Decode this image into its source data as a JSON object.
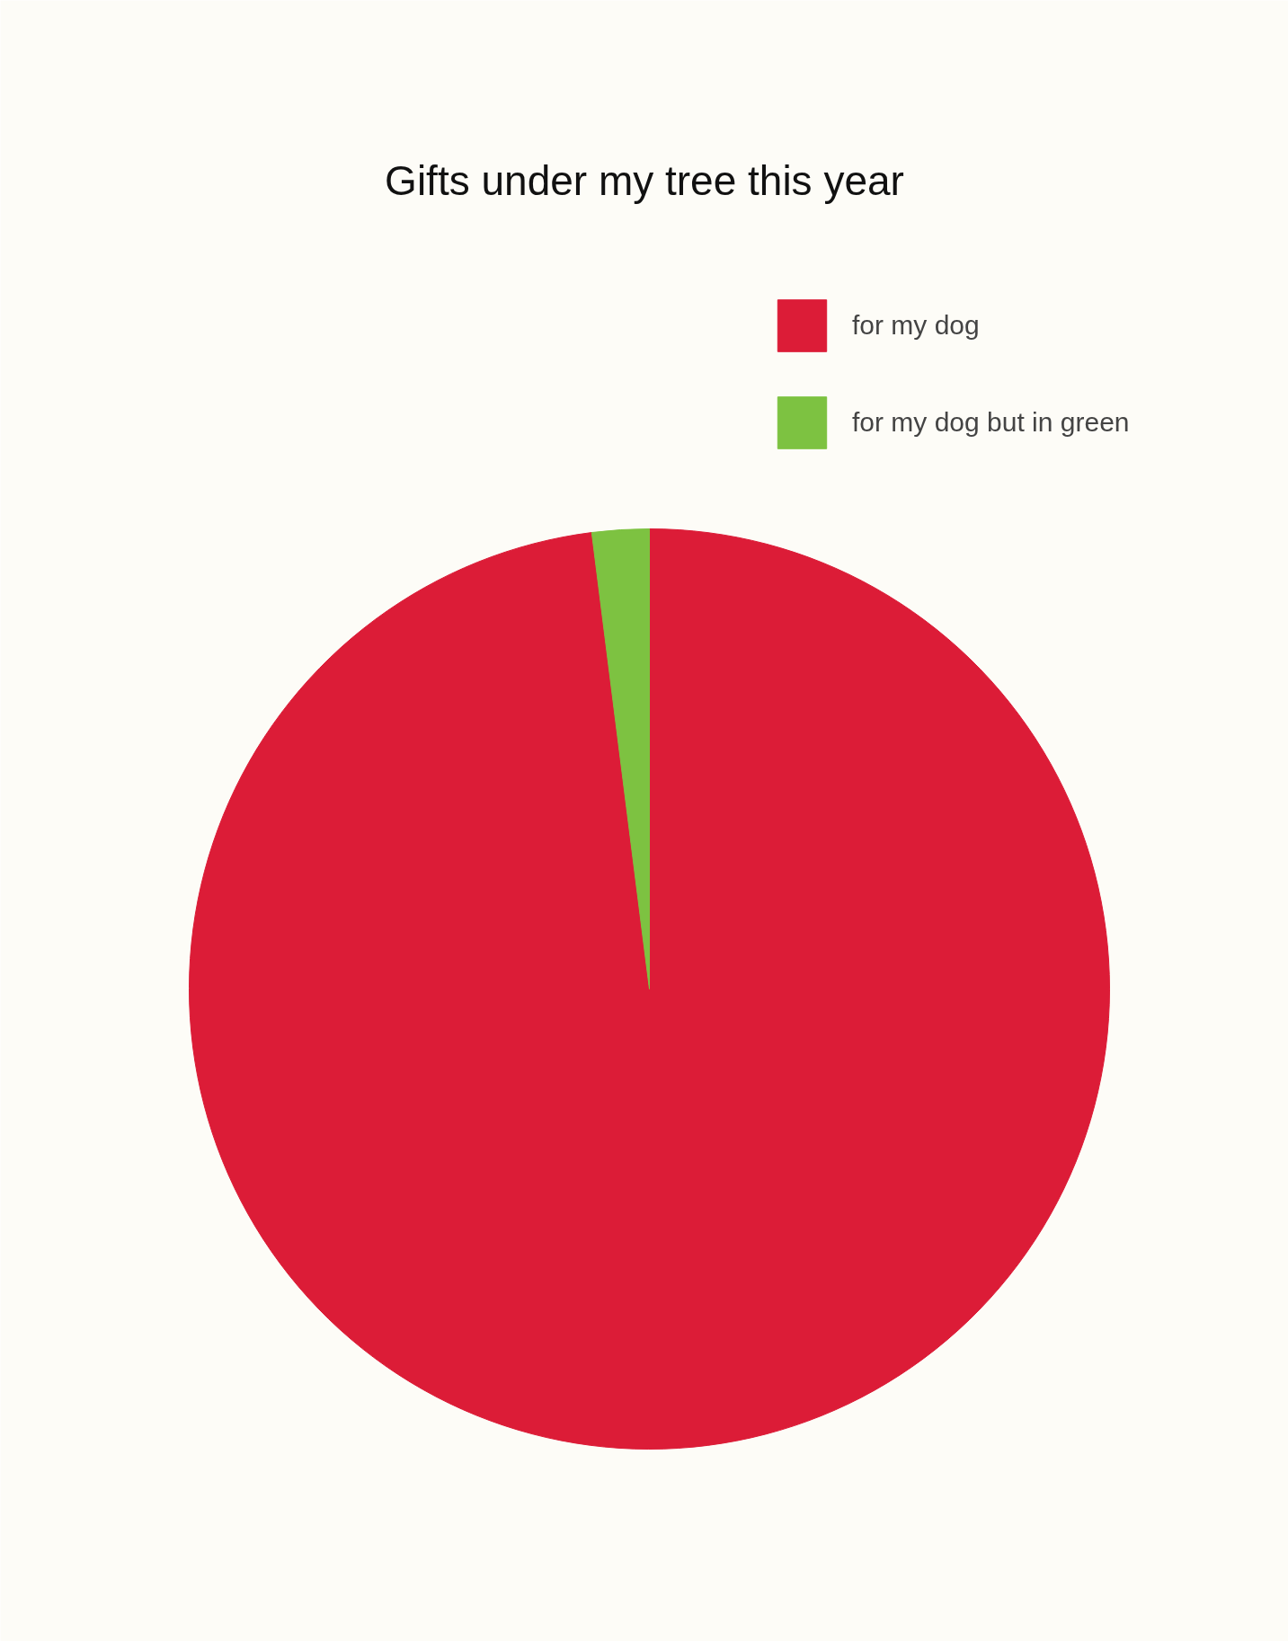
{
  "chart_data": {
    "type": "pie",
    "title": "Gifts under my tree this year",
    "categories": [
      "for my dog",
      "for my dog but in green"
    ],
    "values": [
      98,
      2
    ],
    "colors": [
      "#dc1c37",
      "#7dc241"
    ],
    "legend": "top right"
  }
}
